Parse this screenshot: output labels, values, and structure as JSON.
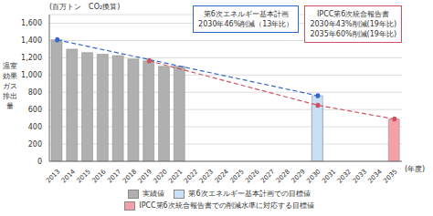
{
  "chart_data": {
    "type": "bar",
    "subtitle": "(百万トン　CO₂換算)",
    "x_label": "(年度)",
    "y_label": "温室\n効果\nガス\n排出\n量",
    "annotations": [
      "第6次エネルギー基本計画\n2030年46%削減（13年比）",
      "IPCC第6次統合報告書\n2030年43%削減(19年比)\n2035年60%削減(19年比)"
    ],
    "categories": [
      "2013",
      "2014",
      "2015",
      "2016",
      "2017",
      "2018",
      "2019",
      "2020",
      "2021",
      "2022",
      "2023",
      "2024",
      "2025",
      "2026",
      "2027",
      "2028",
      "2029",
      "2030",
      "2031",
      "2032",
      "2033",
      "2034",
      "2035"
    ],
    "series": [
      {
        "name": "実績値",
        "type": "bar",
        "color": "#b0b0b0",
        "values": [
          1408,
          1300,
          1260,
          1240,
          1225,
          1185,
          1165,
          1100,
          1100,
          null,
          null,
          null,
          null,
          null,
          null,
          null,
          null,
          null,
          null,
          null,
          null,
          null,
          null
        ]
      },
      {
        "name": "第6次エネルギー基本計画での目標値",
        "type": "bar",
        "color": "#c8dff5",
        "values": [
          null,
          null,
          null,
          null,
          null,
          null,
          null,
          null,
          null,
          null,
          null,
          null,
          null,
          null,
          null,
          null,
          null,
          760,
          null,
          null,
          null,
          null,
          null
        ]
      },
      {
        "name": "IPCC第6次統合報告書での削減水準に対応する目標値",
        "type": "bar",
        "color": "#f4a0a8",
        "values": [
          null,
          null,
          null,
          null,
          null,
          null,
          null,
          null,
          null,
          null,
          null,
          null,
          null,
          null,
          null,
          null,
          null,
          650,
          null,
          null,
          null,
          null,
          490
        ]
      },
      {
        "type": "line",
        "color": "#3366cc",
        "line_style": "dashed",
        "marker": "o",
        "values": [
          1408,
          null,
          null,
          null,
          null,
          null,
          null,
          null,
          null,
          null,
          null,
          null,
          null,
          null,
          null,
          null,
          null,
          760,
          null,
          null,
          null,
          null,
          null
        ]
      },
      {
        "type": "line",
        "color": "#d05060",
        "line_style": "dashed",
        "marker": "o",
        "values": [
          null,
          null,
          null,
          null,
          null,
          null,
          1165,
          null,
          null,
          null,
          null,
          null,
          null,
          null,
          null,
          null,
          null,
          650,
          null,
          null,
          null,
          null,
          490
        ]
      }
    ],
    "ylim": [
      0,
      1700
    ],
    "yticks": [
      0,
      200,
      400,
      600,
      800,
      {
        "value": 1000,
        "label": "1,000"
      },
      {
        "value": 1200,
        "label": "1,200"
      },
      {
        "value": 1400,
        "label": "1,400"
      },
      {
        "value": 1600,
        "label": "1,600"
      }
    ],
    "grid": true,
    "legend": "bottom"
  }
}
